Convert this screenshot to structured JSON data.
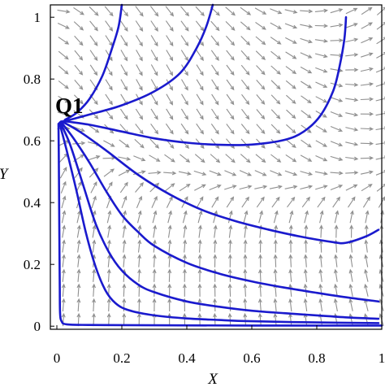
{
  "chart_data": {
    "type": "phase-portrait",
    "title": "",
    "xlabel": "X",
    "ylabel": "Y",
    "xlim": [
      -0.02,
      1.0
    ],
    "ylim": [
      -0.01,
      1.04
    ],
    "xticks": [
      "0",
      "0.2",
      "0.4",
      "0.6",
      "0.8",
      "1"
    ],
    "yticks": [
      "0",
      "0.2",
      "0.4",
      "0.6",
      "0.8",
      "1"
    ],
    "xtick_values": [
      0,
      0.2,
      0.4,
      0.6,
      0.8,
      1.0
    ],
    "ytick_values": [
      0,
      0.2,
      0.4,
      0.6,
      0.8,
      1.0
    ],
    "annotations": [
      {
        "text": "Q1",
        "x": 0.0,
        "y": 0.667
      }
    ],
    "equilibrium": {
      "name": "Q1",
      "x": 0.0,
      "y": 0.667
    },
    "trajectory_color": "#1a1acd",
    "arrow_color": "#8f8f8f",
    "trajectories": [
      {
        "points": [
          [
            0.025,
            0.668
          ],
          [
            0.06,
            0.69
          ],
          [
            0.1,
            0.735
          ],
          [
            0.14,
            0.81
          ],
          [
            0.17,
            0.9
          ],
          [
            0.19,
            0.97
          ],
          [
            0.2,
            1.04
          ]
        ]
      },
      {
        "points": [
          [
            0.03,
            0.665
          ],
          [
            0.1,
            0.685
          ],
          [
            0.2,
            0.715
          ],
          [
            0.3,
            0.76
          ],
          [
            0.38,
            0.82
          ],
          [
            0.43,
            0.9
          ],
          [
            0.46,
            0.97
          ],
          [
            0.48,
            1.04
          ]
        ]
      },
      {
        "points": [
          [
            0.02,
            0.664
          ],
          [
            0.1,
            0.652
          ],
          [
            0.2,
            0.63
          ],
          [
            0.3,
            0.608
          ],
          [
            0.4,
            0.594
          ],
          [
            0.5,
            0.587
          ],
          [
            0.6,
            0.588
          ],
          [
            0.7,
            0.603
          ],
          [
            0.76,
            0.63
          ],
          [
            0.81,
            0.68
          ],
          [
            0.85,
            0.76
          ],
          [
            0.87,
            0.84
          ],
          [
            0.885,
            0.93
          ],
          [
            0.89,
            1.0
          ]
        ]
      },
      {
        "points": [
          [
            0.015,
            0.663
          ],
          [
            0.07,
            0.63
          ],
          [
            0.15,
            0.57
          ],
          [
            0.25,
            0.49
          ],
          [
            0.35,
            0.425
          ],
          [
            0.45,
            0.375
          ],
          [
            0.55,
            0.34
          ],
          [
            0.65,
            0.313
          ],
          [
            0.75,
            0.29
          ],
          [
            0.85,
            0.272
          ],
          [
            0.89,
            0.27
          ],
          [
            0.95,
            0.29
          ],
          [
            0.99,
            0.312
          ]
        ]
      },
      {
        "points": [
          [
            0.012,
            0.662
          ],
          [
            0.05,
            0.61
          ],
          [
            0.1,
            0.53
          ],
          [
            0.15,
            0.44
          ],
          [
            0.2,
            0.36
          ],
          [
            0.25,
            0.305
          ],
          [
            0.3,
            0.26
          ],
          [
            0.4,
            0.205
          ],
          [
            0.5,
            0.17
          ],
          [
            0.6,
            0.145
          ],
          [
            0.7,
            0.125
          ],
          [
            0.8,
            0.108
          ],
          [
            0.9,
            0.092
          ],
          [
            0.99,
            0.08
          ]
        ]
      },
      {
        "points": [
          [
            0.01,
            0.66
          ],
          [
            0.04,
            0.59
          ],
          [
            0.08,
            0.46
          ],
          [
            0.12,
            0.33
          ],
          [
            0.16,
            0.24
          ],
          [
            0.2,
            0.18
          ],
          [
            0.25,
            0.135
          ],
          [
            0.3,
            0.11
          ],
          [
            0.4,
            0.08
          ],
          [
            0.5,
            0.063
          ],
          [
            0.6,
            0.05
          ],
          [
            0.7,
            0.042
          ],
          [
            0.8,
            0.035
          ],
          [
            0.9,
            0.028
          ],
          [
            0.99,
            0.024
          ]
        ]
      },
      {
        "points": [
          [
            0.008,
            0.658
          ],
          [
            0.03,
            0.57
          ],
          [
            0.06,
            0.44
          ],
          [
            0.09,
            0.3
          ],
          [
            0.12,
            0.19
          ],
          [
            0.15,
            0.115
          ],
          [
            0.18,
            0.075
          ],
          [
            0.22,
            0.052
          ],
          [
            0.3,
            0.035
          ],
          [
            0.4,
            0.025
          ],
          [
            0.5,
            0.02
          ],
          [
            0.6,
            0.016
          ],
          [
            0.8,
            0.012
          ],
          [
            0.99,
            0.01
          ]
        ]
      },
      {
        "points": [
          [
            0.005,
            0.655
          ],
          [
            0.006,
            0.55
          ],
          [
            0.007,
            0.4
          ],
          [
            0.008,
            0.25
          ],
          [
            0.009,
            0.12
          ],
          [
            0.01,
            0.04
          ],
          [
            0.015,
            0.015
          ],
          [
            0.03,
            0.006
          ],
          [
            0.1,
            0.004
          ],
          [
            0.3,
            0.003
          ],
          [
            0.6,
            0.002
          ],
          [
            1.0,
            0.002
          ]
        ]
      }
    ]
  }
}
